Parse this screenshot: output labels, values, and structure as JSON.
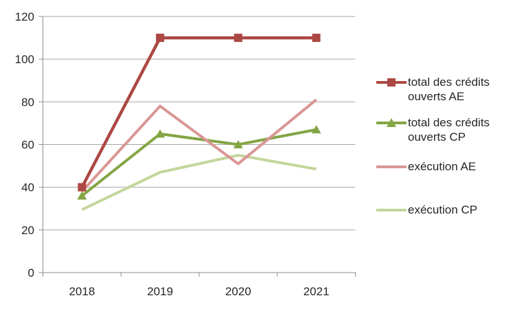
{
  "chart_data": {
    "type": "line",
    "title": "",
    "xlabel": "",
    "ylabel": "",
    "x": [
      "2018",
      "2019",
      "2020",
      "2021"
    ],
    "series": [
      {
        "name": "total des crédits ouverts AE",
        "values": [
          40,
          110,
          110,
          110
        ],
        "color": "#AC4843",
        "marker": "square",
        "line_width": 4.5
      },
      {
        "name": "total des crédits ouverts CP",
        "values": [
          36,
          65,
          60,
          67
        ],
        "color": "#84A545",
        "marker": "triangle",
        "line_width": 4
      },
      {
        "name": "exécution AE",
        "values": [
          38,
          78,
          51,
          81
        ],
        "color": "#D99694",
        "marker": "none",
        "line_width": 4
      },
      {
        "name": "exécution CP",
        "values": [
          29.5,
          47,
          55,
          48.5
        ],
        "color": "#C3D69B",
        "marker": "none",
        "line_width": 4
      }
    ],
    "ylim": [
      0,
      120
    ],
    "yticks": [
      0,
      20,
      40,
      60,
      80,
      100,
      120
    ],
    "grid": true,
    "legend_position": "right",
    "grid_color": "#A6A6A6",
    "axis_color": "#8C8C8C",
    "text_color": "#262626",
    "background": "#FFFFFF"
  }
}
